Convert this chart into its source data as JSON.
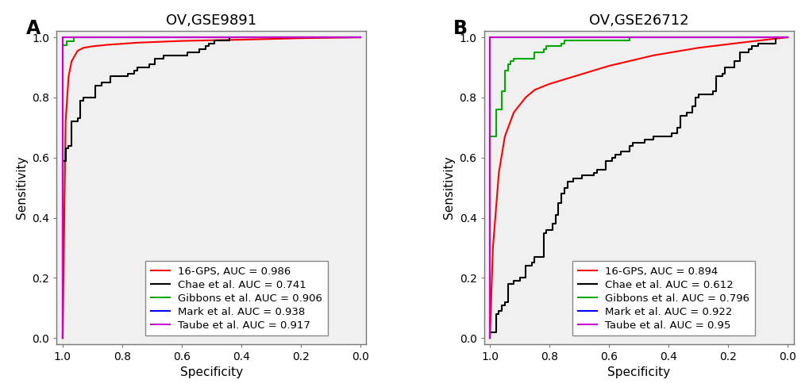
{
  "panel_A": {
    "title": "OV,GSE9891",
    "panel_label": "A",
    "curves": [
      {
        "label": "16-GPS, AUC = 0.986",
        "color": "#FF0000",
        "auc": 0.986
      },
      {
        "label": "Chae et al. AUC = 0.741",
        "color": "#000000",
        "auc": 0.741
      },
      {
        "label": "Gibbons et al. AUC = 0.906",
        "color": "#00AA00",
        "auc": 0.906
      },
      {
        "label": "Mark et al. AUC = 0.938",
        "color": "#0000FF",
        "auc": 0.938
      },
      {
        "label": "Taube et al. AUC = 0.917",
        "color": "#CC00CC",
        "auc": 0.917
      }
    ]
  },
  "panel_B": {
    "title": "OV,GSE26712",
    "panel_label": "B",
    "curves": [
      {
        "label": "16-GPS, AUC = 0.894",
        "color": "#FF0000",
        "auc": 0.894
      },
      {
        "label": "Chae et al. AUC = 0.612",
        "color": "#000000",
        "auc": 0.612
      },
      {
        "label": "Gibbons et al. AUC = 0.796",
        "color": "#00AA00",
        "auc": 0.796
      },
      {
        "label": "Mark et al. AUC = 0.922",
        "color": "#0000FF",
        "auc": 0.922
      },
      {
        "label": "Taube et al. AUC = 0.95",
        "color": "#CC00CC",
        "auc": 0.95
      }
    ]
  },
  "xlabel": "Specificity",
  "ylabel": "Sensitivity",
  "fig_bg": "#FFFFFF",
  "plot_bg": "#F0F0F0",
  "linewidth": 1.5,
  "title_fontsize": 13,
  "axis_fontsize": 11,
  "legend_fontsize": 9.5,
  "tick_fontsize": 10
}
